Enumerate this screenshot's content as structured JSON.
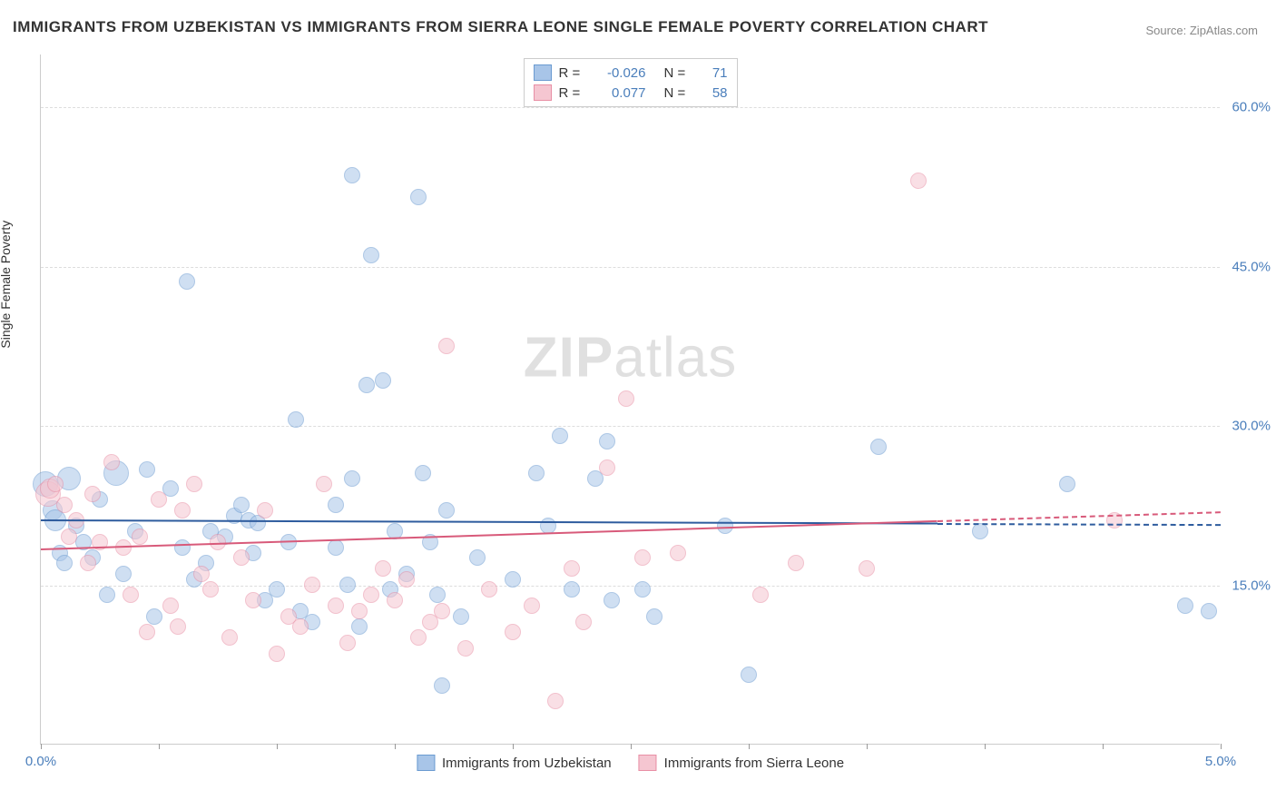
{
  "title": "IMMIGRANTS FROM UZBEKISTAN VS IMMIGRANTS FROM SIERRA LEONE SINGLE FEMALE POVERTY CORRELATION CHART",
  "source": "Source: ZipAtlas.com",
  "y_axis_label": "Single Female Poverty",
  "watermark_bold": "ZIP",
  "watermark_rest": "atlas",
  "chart": {
    "type": "scatter",
    "background_color": "#ffffff",
    "grid_color": "#dddddd",
    "border_color": "#cccccc",
    "xlim": [
      0.0,
      5.0
    ],
    "ylim": [
      0.0,
      65.0
    ],
    "x_ticks": [
      0.0,
      0.5,
      1.0,
      1.5,
      2.0,
      2.5,
      3.0,
      3.5,
      4.0,
      4.5,
      5.0
    ],
    "x_tick_labels": {
      "0": "0.0%",
      "10": "5.0%"
    },
    "y_ticks": [
      15.0,
      30.0,
      45.0,
      60.0
    ],
    "y_tick_labels": {
      "15": "15.0%",
      "30": "30.0%",
      "45": "45.0%",
      "60": "60.0%"
    },
    "axis_label_fontsize": 14,
    "tick_label_fontsize": 15,
    "tick_label_color": "#4a7ebb",
    "title_fontsize": 17,
    "title_color": "#333333",
    "marker_radius": 9,
    "marker_opacity": 0.55,
    "series": [
      {
        "name": "Immigrants from Uzbekistan",
        "color_fill": "#a8c5e8",
        "color_stroke": "#6b9bd1",
        "r_value": "-0.026",
        "n_value": "71",
        "trend": {
          "y_at_xmin": 21.2,
          "y_at_xmax": 20.8,
          "color": "#2e5c9e",
          "width": 2
        },
        "points": [
          [
            0.02,
            24.5,
            14
          ],
          [
            0.05,
            22.0,
            11
          ],
          [
            0.06,
            21.0,
            12
          ],
          [
            0.08,
            18.0,
            9
          ],
          [
            0.1,
            17.0,
            9
          ],
          [
            0.12,
            25.0,
            13
          ],
          [
            0.15,
            20.5,
            9
          ],
          [
            0.18,
            19.0,
            9
          ],
          [
            0.22,
            17.5,
            9
          ],
          [
            0.25,
            23.0,
            9
          ],
          [
            0.28,
            14.0,
            9
          ],
          [
            0.32,
            25.5,
            14
          ],
          [
            0.35,
            16.0,
            9
          ],
          [
            0.4,
            20.0,
            9
          ],
          [
            0.45,
            25.8,
            9
          ],
          [
            0.48,
            12.0,
            9
          ],
          [
            0.55,
            24.0,
            9
          ],
          [
            0.6,
            18.5,
            9
          ],
          [
            0.62,
            43.5,
            9
          ],
          [
            0.65,
            15.5,
            9
          ],
          [
            0.7,
            17.0,
            9
          ],
          [
            0.72,
            20.0,
            9
          ],
          [
            0.78,
            19.5,
            9
          ],
          [
            0.82,
            21.5,
            9
          ],
          [
            0.85,
            22.5,
            9
          ],
          [
            0.88,
            21.0,
            9
          ],
          [
            0.9,
            18.0,
            9
          ],
          [
            0.92,
            20.8,
            9
          ],
          [
            0.95,
            13.5,
            9
          ],
          [
            1.0,
            14.5,
            9
          ],
          [
            1.05,
            19.0,
            9
          ],
          [
            1.08,
            30.5,
            9
          ],
          [
            1.1,
            12.5,
            9
          ],
          [
            1.15,
            11.5,
            9
          ],
          [
            1.32,
            53.5,
            9
          ],
          [
            1.25,
            18.5,
            9
          ],
          [
            1.25,
            22.5,
            9
          ],
          [
            1.3,
            15.0,
            9
          ],
          [
            1.32,
            25.0,
            9
          ],
          [
            1.35,
            11.0,
            9
          ],
          [
            1.38,
            33.8,
            9
          ],
          [
            1.4,
            46.0,
            9
          ],
          [
            1.45,
            34.2,
            9
          ],
          [
            1.48,
            14.5,
            9
          ],
          [
            1.5,
            20.0,
            9
          ],
          [
            1.55,
            16.0,
            9
          ],
          [
            1.6,
            51.5,
            9
          ],
          [
            1.62,
            25.5,
            9
          ],
          [
            1.65,
            19.0,
            9
          ],
          [
            1.68,
            14.0,
            9
          ],
          [
            1.7,
            5.5,
            9
          ],
          [
            1.72,
            22.0,
            9
          ],
          [
            1.78,
            12.0,
            9
          ],
          [
            1.85,
            17.5,
            9
          ],
          [
            2.0,
            15.5,
            9
          ],
          [
            2.1,
            25.5,
            9
          ],
          [
            2.15,
            20.5,
            9
          ],
          [
            2.2,
            29.0,
            9
          ],
          [
            2.25,
            14.5,
            9
          ],
          [
            2.35,
            25.0,
            9
          ],
          [
            2.4,
            28.5,
            9
          ],
          [
            2.42,
            13.5,
            9
          ],
          [
            2.55,
            14.5,
            9
          ],
          [
            2.6,
            12.0,
            9
          ],
          [
            2.9,
            20.5,
            9
          ],
          [
            3.0,
            6.5,
            9
          ],
          [
            3.55,
            28.0,
            9
          ],
          [
            3.98,
            20.0,
            9
          ],
          [
            4.35,
            24.5,
            9
          ],
          [
            4.85,
            13.0,
            9
          ],
          [
            4.95,
            12.5,
            9
          ]
        ]
      },
      {
        "name": "Immigrants from Sierra Leone",
        "color_fill": "#f5c6d1",
        "color_stroke": "#e88fa5",
        "r_value": "0.077",
        "n_value": "58",
        "trend": {
          "y_at_xmin": 18.5,
          "y_at_xmax": 22.0,
          "color": "#d85a7a",
          "width": 2
        },
        "points": [
          [
            0.03,
            23.5,
            14
          ],
          [
            0.04,
            24.0,
            11
          ],
          [
            0.06,
            24.5,
            9
          ],
          [
            0.1,
            22.5,
            9
          ],
          [
            0.12,
            19.5,
            9
          ],
          [
            0.15,
            21.0,
            9
          ],
          [
            0.2,
            17.0,
            9
          ],
          [
            0.22,
            23.5,
            9
          ],
          [
            0.25,
            19.0,
            9
          ],
          [
            0.3,
            26.5,
            9
          ],
          [
            0.35,
            18.5,
            9
          ],
          [
            0.38,
            14.0,
            9
          ],
          [
            0.42,
            19.5,
            9
          ],
          [
            0.45,
            10.5,
            9
          ],
          [
            0.5,
            23.0,
            9
          ],
          [
            0.55,
            13.0,
            9
          ],
          [
            0.58,
            11.0,
            9
          ],
          [
            0.6,
            22.0,
            9
          ],
          [
            0.65,
            24.5,
            9
          ],
          [
            0.68,
            16.0,
            9
          ],
          [
            0.72,
            14.5,
            9
          ],
          [
            0.75,
            19.0,
            9
          ],
          [
            0.8,
            10.0,
            9
          ],
          [
            0.85,
            17.5,
            9
          ],
          [
            0.9,
            13.5,
            9
          ],
          [
            0.95,
            22.0,
            9
          ],
          [
            1.0,
            8.5,
            9
          ],
          [
            1.05,
            12.0,
            9
          ],
          [
            1.1,
            11.0,
            9
          ],
          [
            1.15,
            15.0,
            9
          ],
          [
            1.2,
            24.5,
            9
          ],
          [
            1.25,
            13.0,
            9
          ],
          [
            1.3,
            9.5,
            9
          ],
          [
            1.35,
            12.5,
            9
          ],
          [
            1.4,
            14.0,
            9
          ],
          [
            1.45,
            16.5,
            9
          ],
          [
            1.5,
            13.5,
            9
          ],
          [
            1.55,
            15.5,
            9
          ],
          [
            1.6,
            10.0,
            9
          ],
          [
            1.65,
            11.5,
            9
          ],
          [
            1.7,
            12.5,
            9
          ],
          [
            1.72,
            37.5,
            9
          ],
          [
            1.8,
            9.0,
            9
          ],
          [
            1.9,
            14.5,
            9
          ],
          [
            2.0,
            10.5,
            9
          ],
          [
            2.08,
            13.0,
            9
          ],
          [
            2.18,
            4.0,
            9
          ],
          [
            2.25,
            16.5,
            9
          ],
          [
            2.3,
            11.5,
            9
          ],
          [
            2.4,
            26.0,
            9
          ],
          [
            2.48,
            32.5,
            9
          ],
          [
            2.55,
            17.5,
            9
          ],
          [
            2.7,
            18.0,
            9
          ],
          [
            3.05,
            14.0,
            9
          ],
          [
            3.2,
            17.0,
            9
          ],
          [
            3.5,
            16.5,
            9
          ],
          [
            3.72,
            53.0,
            9
          ],
          [
            4.55,
            21.0,
            9
          ]
        ]
      }
    ]
  },
  "legend_top": {
    "r_label": "R =",
    "n_label": "N ="
  }
}
